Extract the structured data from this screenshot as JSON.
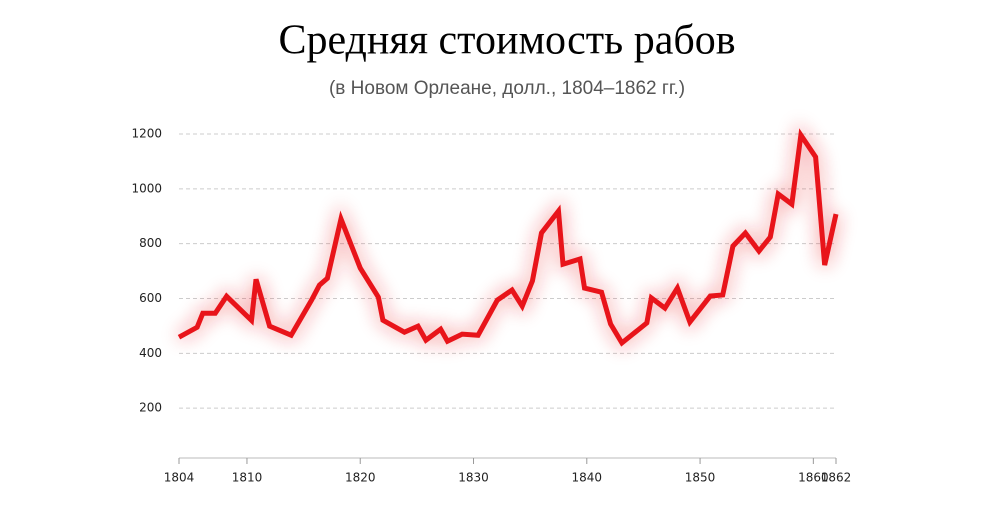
{
  "chart_data": {
    "type": "line",
    "title": "Средняя стоимость рабов",
    "subtitle": "(в Новом Орлеане, долл., 1804–1862 гг.)",
    "series": [
      {
        "color": "#e8141a",
        "x": [
          1804,
          1805.6,
          1806.1,
          1807.2,
          1808.2,
          1810.4,
          1810.8,
          1812,
          1813.9,
          1815.7,
          1816.4,
          1817.1,
          1818.3,
          1820,
          1821.6,
          1822,
          1823.9,
          1825.1,
          1825.8,
          1827.1,
          1827.7,
          1829,
          1830.4,
          1832.1,
          1833.4,
          1834.3,
          1835.2,
          1836,
          1837.5,
          1837.9,
          1839.4,
          1839.8,
          1841.3,
          1842.1,
          1843.1,
          1845.3,
          1845.7,
          1846.9,
          1848,
          1849.1,
          1850.9,
          1852,
          1852.9,
          1854,
          1855.2,
          1856.2,
          1856.9,
          1858.1,
          1858.9,
          1860.2,
          1861,
          1862
        ],
        "values": [
          459,
          495,
          546,
          546,
          608,
          520,
          670,
          499,
          466,
          594,
          649,
          674,
          890,
          711,
          605,
          521,
          477,
          499,
          448,
          488,
          444,
          470,
          466,
          594,
          631,
          572,
          664,
          839,
          919,
          725,
          744,
          638,
          623,
          507,
          438,
          511,
          602,
          565,
          638,
          514,
          609,
          613,
          791,
          839,
          773,
          824,
          981,
          944,
          1196,
          1116,
          722,
          908
        ]
      }
    ],
    "xlim": [
      1804,
      1862
    ],
    "xticks": [
      1804,
      1810,
      1820,
      1830,
      1840,
      1850,
      1860,
      1862
    ],
    "ylim": [
      0,
      1200
    ],
    "yticks": [
      200,
      400,
      600,
      800,
      1000,
      1200
    ],
    "grid": true
  }
}
